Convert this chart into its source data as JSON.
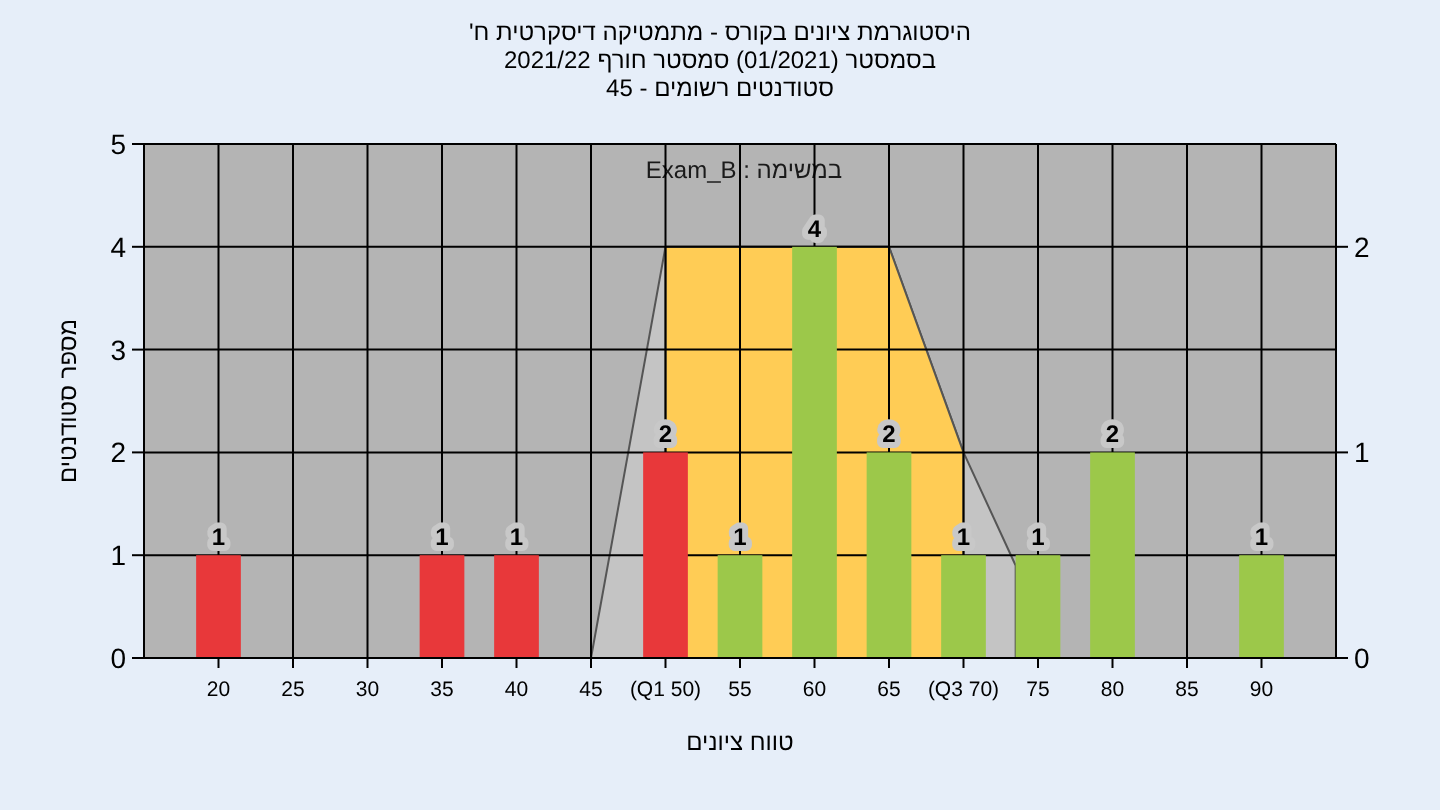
{
  "chart_data": {
    "type": "bar",
    "title": "היסטוגרמת ציונים בקורס - מתמטיקה דיסקרטית ח'",
    "subtitle": "בסמסטר (01/2021) סמסטר חורף 2021/22",
    "annotations": [
      "סטודנטים רשומים - 45",
      "במשימה : Exam_B"
    ],
    "xlabel": "טווח ציונים",
    "ylabel": "מספר סטודנטים",
    "xlim": [
      15,
      95
    ],
    "xticks": [
      20,
      25,
      30,
      35,
      40,
      45,
      {
        "value": 50,
        "label": "(Q1 50)"
      },
      55,
      60,
      65,
      {
        "value": 70,
        "label": "(Q3 70)"
      },
      75,
      80,
      85,
      90
    ],
    "ylim": [
      0,
      5
    ],
    "yticks": [
      0,
      1,
      2,
      3,
      4,
      5
    ],
    "y2lim": [
      0,
      2.5
    ],
    "y2ticks": [
      0,
      1,
      2
    ],
    "grid": true,
    "series": [
      {
        "type": "area",
        "axis": "y2",
        "color": "#c4c4c4",
        "x": [
          45,
          50,
          65,
          70,
          73.5
        ],
        "values": [
          0,
          2,
          2,
          1,
          0.45
        ]
      },
      {
        "type": "area",
        "axis": "y2",
        "color": "#ffcc55",
        "x": [
          50,
          65,
          70
        ],
        "values": [
          2,
          2,
          1
        ]
      },
      {
        "x": [
          20,
          35,
          40,
          50,
          55,
          60,
          65,
          70,
          75,
          80,
          90
        ],
        "values": [
          1,
          1,
          1,
          2,
          1,
          4,
          2,
          1,
          1,
          2,
          1
        ],
        "colors": [
          "#e8383a",
          "#e8383a",
          "#e8383a",
          "#e8383a",
          "#9cc84a",
          "#9cc84a",
          "#9cc84a",
          "#9cc84a",
          "#9cc84a",
          "#9cc84a",
          "#9cc84a"
        ],
        "value_labels": [
          "1",
          "1",
          "1",
          "2",
          "1",
          "4",
          "2",
          "1",
          "1",
          "2",
          "1"
        ]
      }
    ]
  }
}
